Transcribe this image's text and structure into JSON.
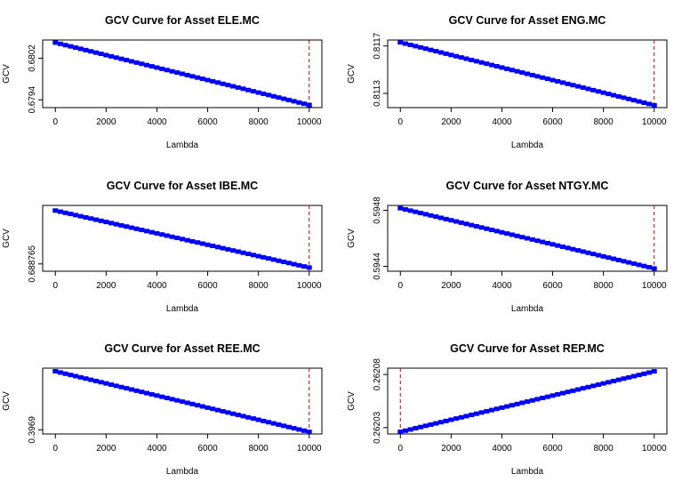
{
  "chart_data": [
    {
      "type": "scatter",
      "title": "GCV Curve for Asset ELE.MC",
      "xlabel": "Lambda",
      "ylabel": "GCV",
      "xlim": [
        -500,
        10500
      ],
      "xticks": [
        0,
        2000,
        4000,
        6000,
        8000,
        10000
      ],
      "ylim": [
        0.67925,
        0.68055
      ],
      "yticks": [
        0.6794,
        0.6802
      ],
      "series": [
        {
          "x_start": 0,
          "x_end": 10000,
          "n_points": 51,
          "y_start": 0.6805,
          "y_end": 0.6793
        }
      ],
      "optimal_lambda": 10000,
      "marker_color": "#0000ff",
      "vline_color": "#cc0000"
    },
    {
      "type": "scatter",
      "title": "GCV Curve for Asset ENG.MC",
      "xlabel": "Lambda",
      "ylabel": "GCV",
      "xlim": [
        -500,
        10500
      ],
      "xticks": [
        0,
        2000,
        4000,
        6000,
        8000,
        10000
      ],
      "ylim": [
        0.81118,
        0.81175
      ],
      "yticks": [
        0.8113,
        0.8117
      ],
      "series": [
        {
          "x_start": 0,
          "x_end": 10000,
          "n_points": 51,
          "y_start": 0.81173,
          "y_end": 0.8112
        }
      ],
      "optimal_lambda": 10000,
      "marker_color": "#0000ff",
      "vline_color": "#cc0000"
    },
    {
      "type": "scatter",
      "title": "GCV Curve for Asset IBE.MC",
      "xlabel": "Lambda",
      "ylabel": "GCV",
      "xlim": [
        -500,
        10500
      ],
      "xticks": [
        0,
        2000,
        4000,
        6000,
        8000,
        10000
      ],
      "ylim": [
        0.688755,
        0.688845
      ],
      "yticks": [
        0.688765
      ],
      "series": [
        {
          "x_start": 0,
          "x_end": 10000,
          "n_points": 51,
          "y_start": 0.688838,
          "y_end": 0.68876
        }
      ],
      "optimal_lambda": 10000,
      "marker_color": "#0000ff",
      "vline_color": "#cc0000"
    },
    {
      "type": "scatter",
      "title": "GCV Curve for Asset NTGY.MC",
      "xlabel": "Lambda",
      "ylabel": "GCV",
      "xlim": [
        -500,
        10500
      ],
      "xticks": [
        0,
        2000,
        4000,
        6000,
        8000,
        10000
      ],
      "ylim": [
        0.594365,
        0.594835
      ],
      "yticks": [
        0.5944,
        0.5948
      ],
      "series": [
        {
          "x_start": 0,
          "x_end": 10000,
          "n_points": 51,
          "y_start": 0.594815,
          "y_end": 0.594385
        }
      ],
      "optimal_lambda": 10000,
      "marker_color": "#0000ff",
      "vline_color": "#cc0000"
    },
    {
      "type": "scatter",
      "title": "GCV Curve for Asset REE.MC",
      "xlabel": "Lambda",
      "ylabel": "GCV",
      "xlim": [
        -500,
        10500
      ],
      "xticks": [
        0,
        2000,
        4000,
        6000,
        8000,
        10000
      ],
      "ylim": [
        0.39686,
        0.39749
      ],
      "yticks": [
        0.3969
      ],
      "series": [
        {
          "x_start": 0,
          "x_end": 10000,
          "n_points": 51,
          "y_start": 0.39746,
          "y_end": 0.39688
        }
      ],
      "optimal_lambda": 10000,
      "marker_color": "#0000ff",
      "vline_color": "#cc0000"
    },
    {
      "type": "scatter",
      "title": "GCV Curve for Asset REP.MC",
      "xlabel": "Lambda",
      "ylabel": "GCV",
      "xlim": [
        -500,
        10500
      ],
      "xticks": [
        0,
        2000,
        4000,
        6000,
        8000,
        10000
      ],
      "ylim": [
        0.262024,
        0.262086
      ],
      "yticks": [
        0.26203,
        0.26208
      ],
      "series": [
        {
          "x_start": 0,
          "x_end": 10000,
          "n_points": 51,
          "y_start": 0.262026,
          "y_end": 0.262083
        }
      ],
      "optimal_lambda": 0,
      "marker_color": "#0000ff",
      "vline_color": "#cc0000"
    }
  ]
}
